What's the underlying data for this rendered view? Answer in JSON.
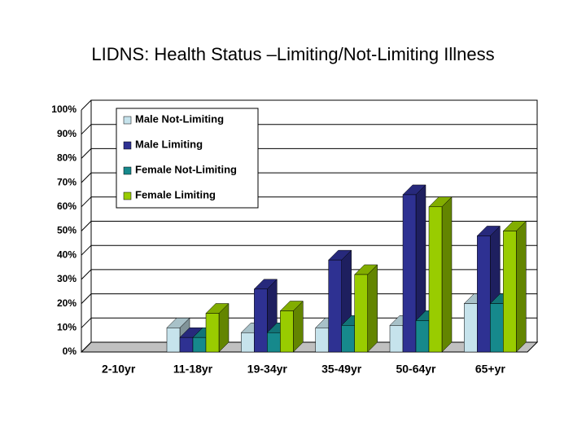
{
  "chart_data": {
    "type": "bar3d",
    "title": "LIDNS: Health Status –Limiting/Not-Limiting Illness",
    "categories": [
      "2-10yr",
      "11-18yr",
      "19-34yr",
      "35-49yr",
      "50-64yr",
      "65+yr"
    ],
    "series": [
      {
        "name": "Male Not-Limiting",
        "color": "#c6e3ec",
        "values": [
          null,
          10,
          8,
          10,
          11,
          20
        ]
      },
      {
        "name": "Male Limiting",
        "color": "#2e3192",
        "values": [
          null,
          6,
          26,
          38,
          65,
          48
        ]
      },
      {
        "name": "Female Not-Limiting",
        "color": "#16898c",
        "values": [
          null,
          6,
          8,
          11,
          13,
          20
        ]
      },
      {
        "name": "Female Limiting",
        "color": "#99cc00",
        "values": [
          null,
          16,
          17,
          32,
          60,
          50
        ]
      }
    ],
    "ylim": [
      0,
      100
    ],
    "yticks": [
      {
        "value": 0,
        "label": "0%"
      },
      {
        "value": 10,
        "label": "10%"
      },
      {
        "value": 20,
        "label": "20%"
      },
      {
        "value": 30,
        "label": "30%"
      },
      {
        "value": 40,
        "label": "40%"
      },
      {
        "value": 50,
        "label": "50%"
      },
      {
        "value": 60,
        "label": "60%"
      },
      {
        "value": 70,
        "label": "70%"
      },
      {
        "value": 80,
        "label": "80%"
      },
      {
        "value": 90,
        "label": "90%"
      },
      {
        "value": 100,
        "label": "100%"
      }
    ],
    "grid": true
  }
}
